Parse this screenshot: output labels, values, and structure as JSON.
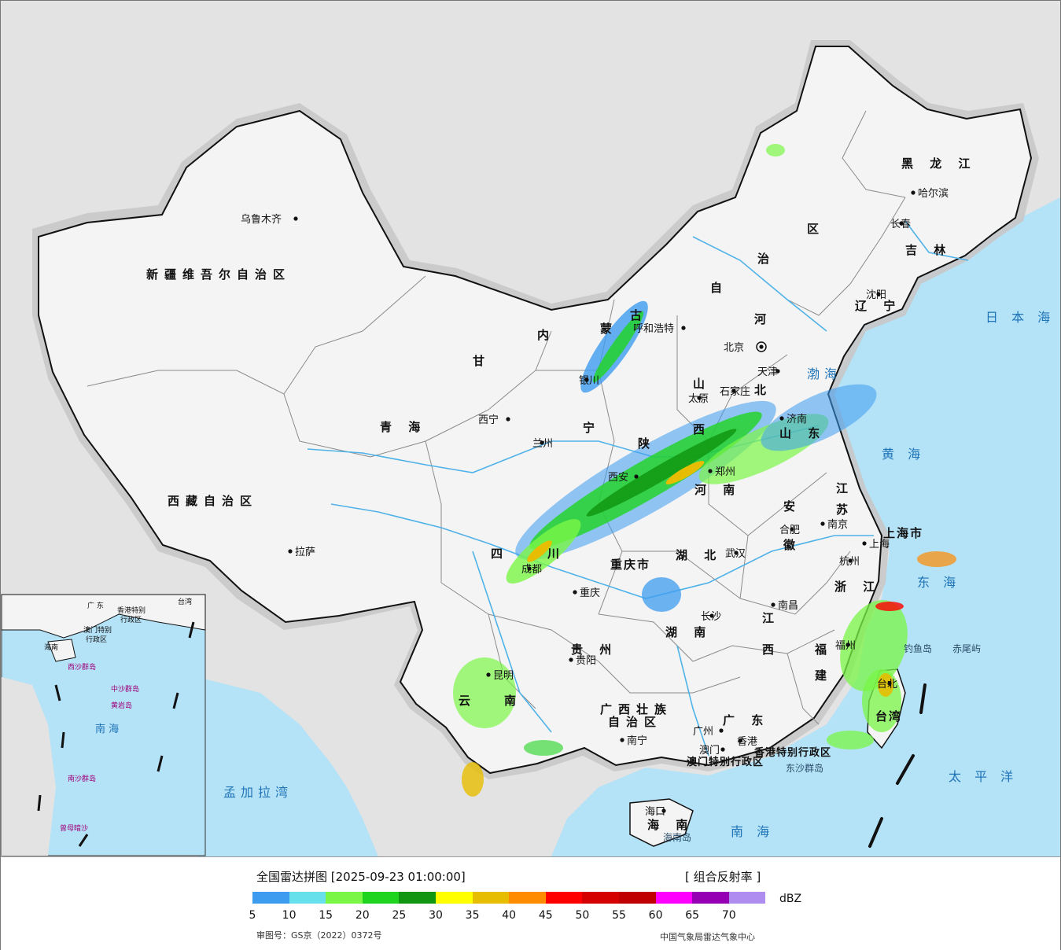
{
  "map": {
    "provinces": [
      {
        "key": "xinjiang",
        "text": "新疆维吾尔自治区"
      },
      {
        "key": "xizang",
        "text": "西藏自治区"
      },
      {
        "key": "qinghai",
        "text": "青 海"
      },
      {
        "key": "gansu",
        "text": "甘"
      },
      {
        "key": "sichuan1",
        "text": "四"
      },
      {
        "key": "sichuan2",
        "text": "川"
      },
      {
        "key": "yunnan1",
        "text": "云"
      },
      {
        "key": "yunnan2",
        "text": "南"
      },
      {
        "key": "guizhou",
        "text": "贵 州"
      },
      {
        "key": "guangxi1",
        "text": "广西壮族"
      },
      {
        "key": "guangxi2",
        "text": "自治区"
      },
      {
        "key": "guangdong",
        "text": "广 东"
      },
      {
        "key": "hainan",
        "text": "海 南"
      },
      {
        "key": "hunan",
        "text": "湖 南"
      },
      {
        "key": "hubei",
        "text": "湖 北"
      },
      {
        "key": "jiangxi1",
        "text": "江"
      },
      {
        "key": "jiangxi2",
        "text": "西"
      },
      {
        "key": "fujian1",
        "text": "福"
      },
      {
        "key": "fujian2",
        "text": "建"
      },
      {
        "key": "zhejiang",
        "text": "浙 江"
      },
      {
        "key": "anhui1",
        "text": "安"
      },
      {
        "key": "anhui2",
        "text": "徽"
      },
      {
        "key": "jiangsu1",
        "text": "江"
      },
      {
        "key": "jiangsu2",
        "text": "苏"
      },
      {
        "key": "shandong",
        "text": "山 东"
      },
      {
        "key": "henan",
        "text": "河 南"
      },
      {
        "key": "shanxi1",
        "text": "山"
      },
      {
        "key": "shanxi2",
        "text": "西"
      },
      {
        "key": "shaanxi",
        "text": "陕"
      },
      {
        "key": "ningxia",
        "text": "宁"
      },
      {
        "key": "hebei",
        "text": "北"
      },
      {
        "key": "hebei2",
        "text": "河"
      },
      {
        "key": "neimenggu1",
        "text": "内"
      },
      {
        "key": "neimenggu2",
        "text": "蒙"
      },
      {
        "key": "neimenggu3",
        "text": "古"
      },
      {
        "key": "neimenggu4",
        "text": "自"
      },
      {
        "key": "neimenggu5",
        "text": "治"
      },
      {
        "key": "neimenggu6",
        "text": "区"
      },
      {
        "key": "heilongjiang",
        "text": "黑 龙 江"
      },
      {
        "key": "jilin",
        "text": "吉 林"
      },
      {
        "key": "liaoning",
        "text": "辽 宁"
      },
      {
        "key": "chongqing",
        "text": "重庆市"
      },
      {
        "key": "shanghai",
        "text": "上海市"
      },
      {
        "key": "taiwan",
        "text": "台湾"
      },
      {
        "key": "hk",
        "text": "香港特别行政区"
      },
      {
        "key": "macau",
        "text": "澳门特别行政区"
      }
    ],
    "cities": [
      {
        "key": "urumqi",
        "text": "乌鲁木齐"
      },
      {
        "key": "lhasa",
        "text": "拉萨"
      },
      {
        "key": "xining",
        "text": "西宁"
      },
      {
        "key": "lanzhou",
        "text": "兰州"
      },
      {
        "key": "yinchuan",
        "text": "银川"
      },
      {
        "key": "hohhot",
        "text": "呼和浩特"
      },
      {
        "key": "beijing",
        "text": "北京"
      },
      {
        "key": "tianjin",
        "text": "天津"
      },
      {
        "key": "shijiazhuang",
        "text": "石家庄"
      },
      {
        "key": "taiyuan",
        "text": "太原"
      },
      {
        "key": "jinan",
        "text": "济南"
      },
      {
        "key": "zhengzhou",
        "text": "郑州"
      },
      {
        "key": "xian",
        "text": "西安"
      },
      {
        "key": "chengdu",
        "text": "成都"
      },
      {
        "key": "chongqing",
        "text": "重庆"
      },
      {
        "key": "wuhan",
        "text": "武汉"
      },
      {
        "key": "hefei",
        "text": "合肥"
      },
      {
        "key": "nanjing",
        "text": "南京"
      },
      {
        "key": "shanghai",
        "text": "上海"
      },
      {
        "key": "hangzhou",
        "text": "杭州"
      },
      {
        "key": "nanchang",
        "text": "南昌"
      },
      {
        "key": "changsha",
        "text": "长沙"
      },
      {
        "key": "guiyang",
        "text": "贵阳"
      },
      {
        "key": "kunming",
        "text": "昆明"
      },
      {
        "key": "nanning",
        "text": "南宁"
      },
      {
        "key": "guangzhou",
        "text": "广州"
      },
      {
        "key": "hongkong",
        "text": "香港"
      },
      {
        "key": "macao",
        "text": "澳门"
      },
      {
        "key": "haikou",
        "text": "海口"
      },
      {
        "key": "fuzhou",
        "text": "福州"
      },
      {
        "key": "taipei",
        "text": "台北"
      },
      {
        "key": "shenyang",
        "text": "沈阳"
      },
      {
        "key": "changchun",
        "text": "长春"
      },
      {
        "key": "harbin",
        "text": "哈尔滨"
      }
    ],
    "seas": [
      {
        "key": "bohai",
        "text": "渤海"
      },
      {
        "key": "huanghai",
        "text": "黄 海"
      },
      {
        "key": "donghai",
        "text": "东 海"
      },
      {
        "key": "nanhai",
        "text": "南 海"
      },
      {
        "key": "taipingyang",
        "text": "太 平 洋"
      },
      {
        "key": "ribenhai",
        "text": "日 本 海"
      },
      {
        "key": "mengjialawan",
        "text": "孟加拉湾"
      }
    ],
    "islands": [
      {
        "key": "diaoyudao",
        "text": "钓鱼岛"
      },
      {
        "key": "chiweiyu",
        "text": "赤尾屿"
      },
      {
        "key": "dongshaqundao",
        "text": "东沙群岛"
      },
      {
        "key": "hainandao",
        "text": "海南岛"
      }
    ],
    "inset": {
      "labels": [
        "广 东",
        "台湾",
        "香港特别",
        "行政区",
        "澳门特别",
        "行政区",
        "海南",
        "西沙群岛",
        "中沙群岛",
        "黄岩岛",
        "南 海",
        "南沙群岛",
        "曾母暗沙"
      ]
    },
    "colors": {
      "land": "#f4f4f4",
      "neighbor": "#e3e3e3",
      "water": "#b4e2f7",
      "river": "#4fb2e8",
      "border": "#111111"
    }
  },
  "legend": {
    "title": "全国雷达拼图 [2025-09-23 01:00:00]",
    "product": "[ 组合反射率 ]",
    "unit": "dBZ",
    "ticks": [
      "5",
      "10",
      "15",
      "20",
      "25",
      "30",
      "35",
      "40",
      "45",
      "50",
      "55",
      "60",
      "65",
      "70"
    ],
    "colors": [
      "#3d9cf0",
      "#67e0ec",
      "#7af646",
      "#1fd41f",
      "#119611",
      "#ffff00",
      "#e6bd00",
      "#ff8c00",
      "#ff0000",
      "#d50000",
      "#c00000",
      "#ff00ff",
      "#9600b4",
      "#ae8cf0"
    ],
    "approval": "审图号：GS京（2022）0372号",
    "source": "中国气象局雷达气象中心"
  }
}
